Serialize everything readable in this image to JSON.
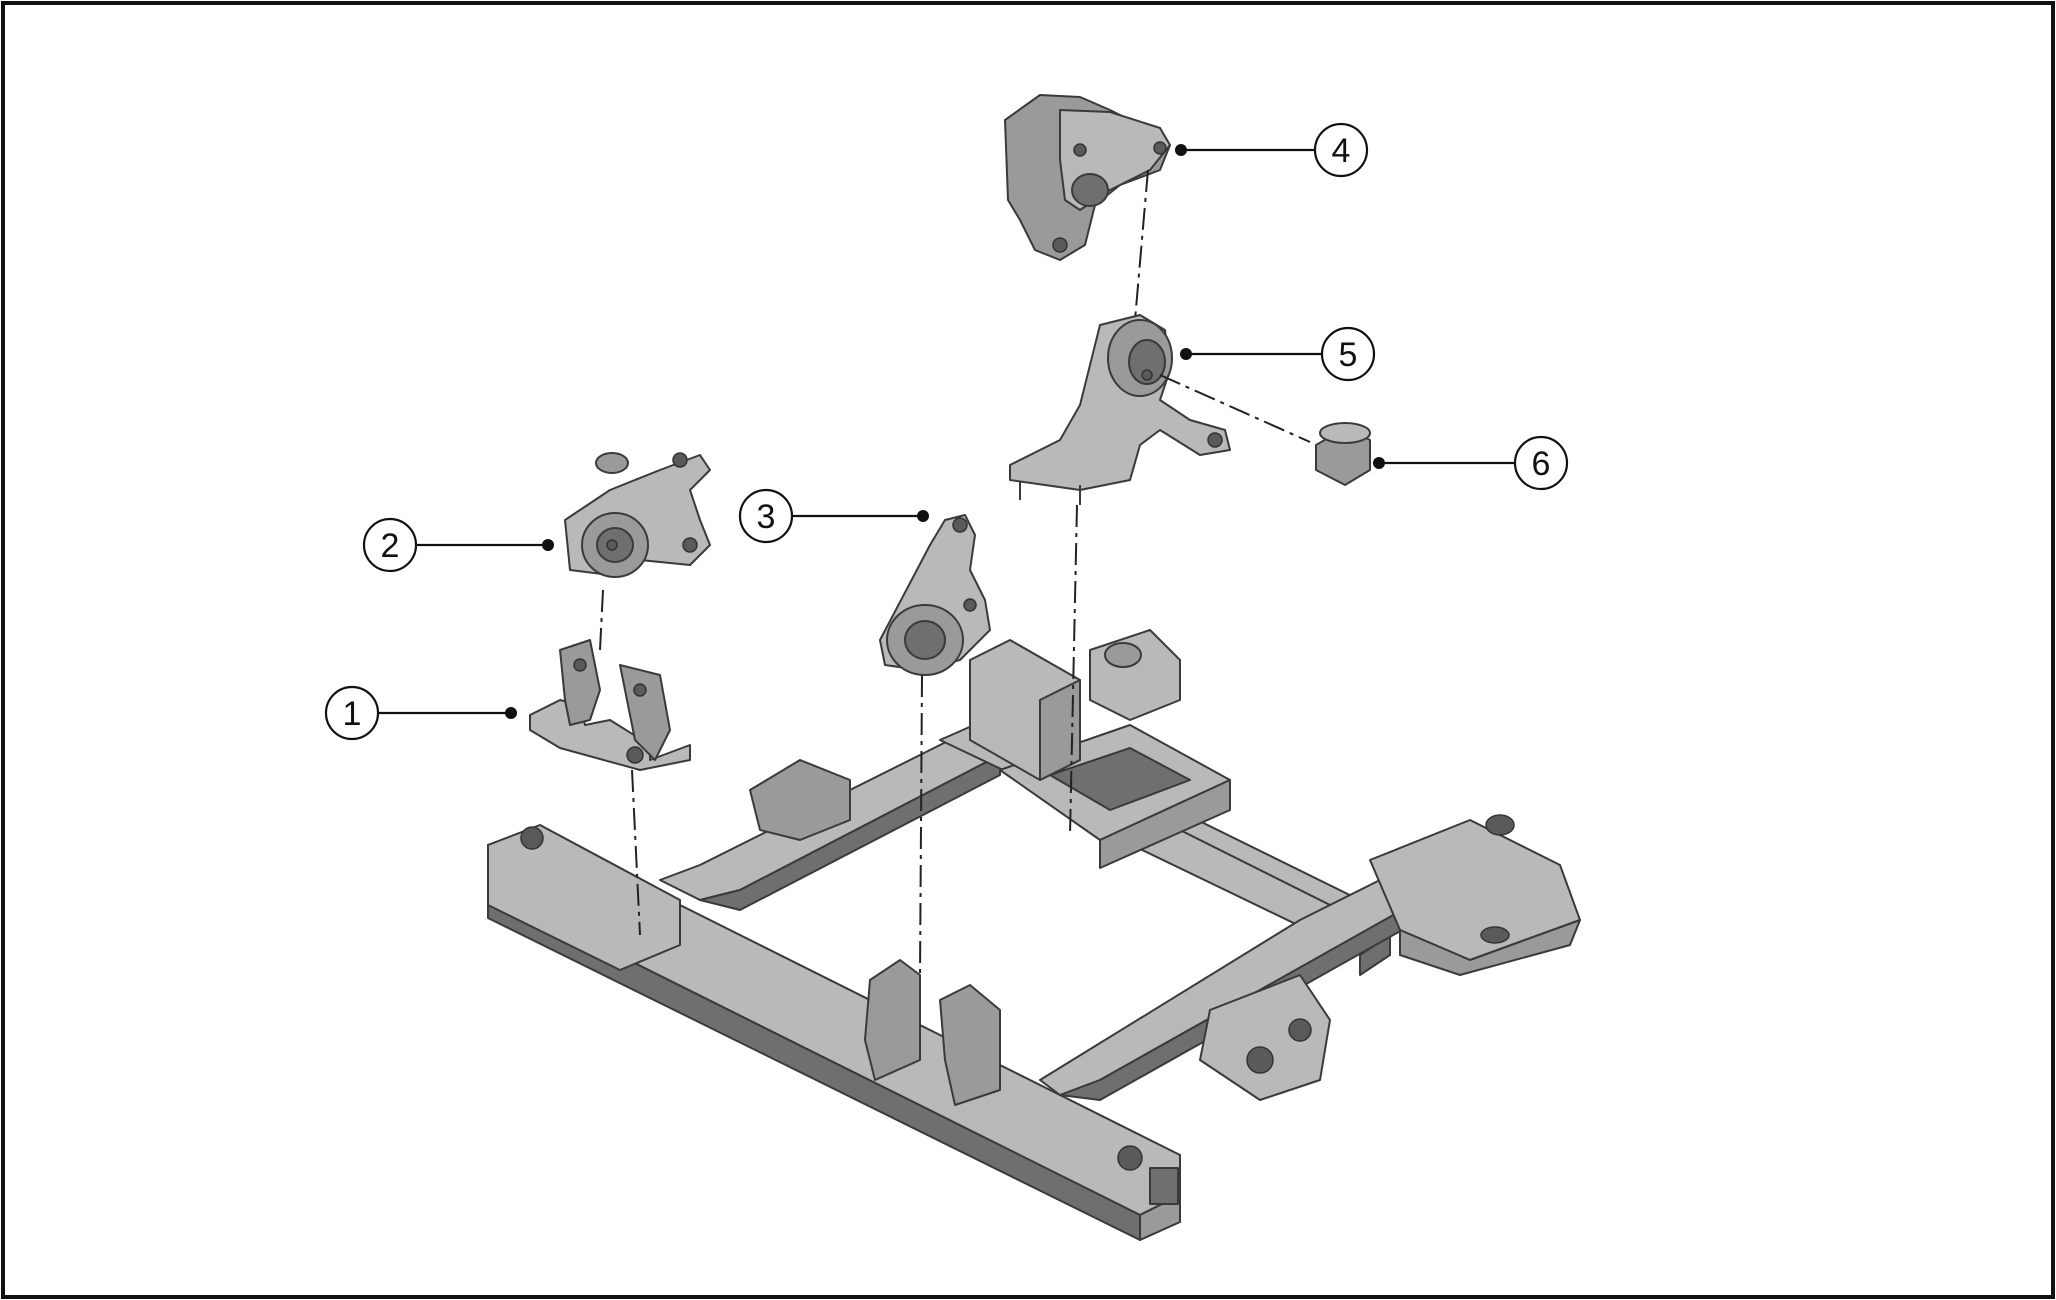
{
  "callouts": [
    {
      "label": "1"
    },
    {
      "label": "2"
    },
    {
      "label": "3"
    },
    {
      "label": "4"
    },
    {
      "label": "5"
    },
    {
      "label": "6"
    }
  ],
  "colors": {
    "frame": "#111111",
    "part_light": "#b9b9b9",
    "part_mid": "#9a9a9a",
    "part_dark": "#6f6f6f",
    "background": "#ffffff"
  }
}
